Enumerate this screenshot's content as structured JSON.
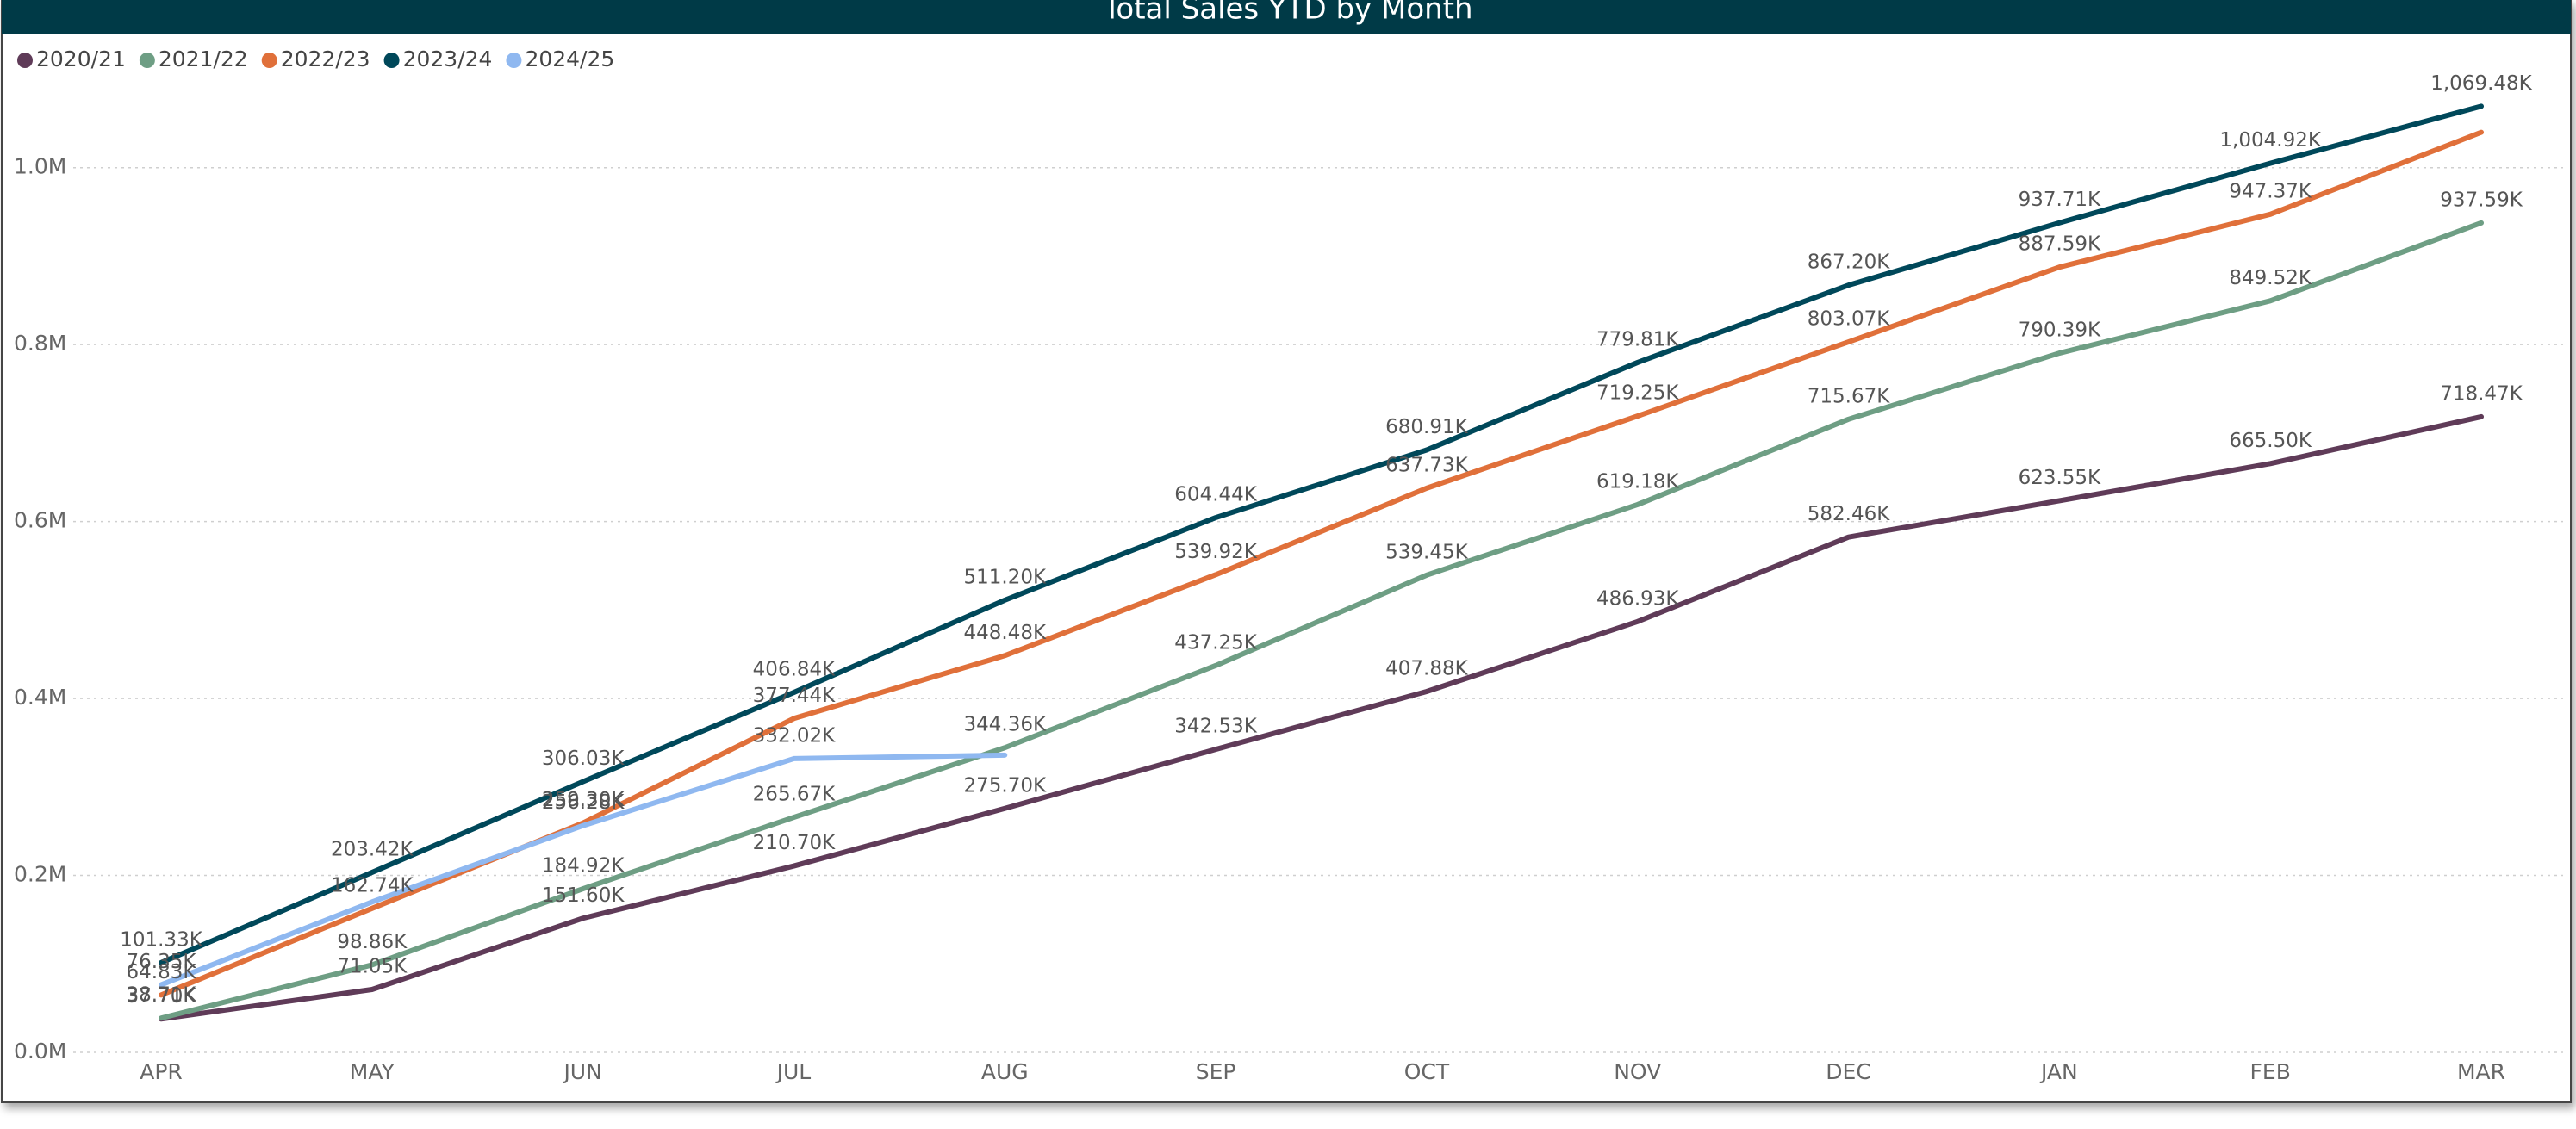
{
  "chart_data": {
    "type": "line",
    "title": "Total Sales YTD by Month",
    "categories": [
      "APR",
      "MAY",
      "JUN",
      "JUL",
      "AUG",
      "SEP",
      "OCT",
      "NOV",
      "DEC",
      "JAN",
      "FEB",
      "MAR"
    ],
    "series": [
      {
        "name": "2020/21",
        "color": "#5f3b58",
        "values": [
          37700,
          71050,
          151600,
          210700,
          275700,
          342530,
          407880,
          486930,
          582460,
          623550,
          665500,
          718470
        ],
        "value_labels": [
          "37.70K",
          "71.05K",
          "151.60K",
          "210.70K",
          "275.70K",
          "342.53K",
          "407.88K",
          "486.93K",
          "582.46K",
          "623.55K",
          "665.50K",
          "718.47K"
        ]
      },
      {
        "name": "2021/22",
        "color": "#6e9e84",
        "values": [
          38710,
          98860,
          184920,
          265670,
          344360,
          437250,
          539450,
          619180,
          715670,
          790390,
          849520,
          937590
        ],
        "value_labels": [
          "38.71K",
          "98.86K",
          "184.92K",
          "265.67K",
          "344.36K",
          "437.25K",
          "539.45K",
          "619.18K",
          "715.67K",
          "790.39K",
          "849.52K",
          "937.59K"
        ]
      },
      {
        "name": "2022/23",
        "color": "#e0703a",
        "values": [
          64830,
          162740,
          259300,
          377440,
          448480,
          539920,
          637730,
          719250,
          803070,
          887590,
          947370,
          1040000
        ],
        "value_labels": [
          "64.83K",
          "162.74K",
          "259.30K",
          "377.44K",
          "448.48K",
          "539.92K",
          "637.73K",
          "719.25K",
          "803.07K",
          "887.59K",
          "947.37K",
          null
        ]
      },
      {
        "name": "2023/24",
        "color": "#00485a",
        "values": [
          101330,
          203420,
          306030,
          406840,
          511200,
          604440,
          680910,
          779810,
          867200,
          937710,
          1004920,
          1069480
        ],
        "value_labels": [
          "101.33K",
          "203.42K",
          "306.03K",
          "406.84K",
          "511.20K",
          "604.44K",
          "680.91K",
          "779.81K",
          "867.20K",
          "937.71K",
          "1,004.92K",
          "1,069.48K"
        ]
      },
      {
        "name": "2024/25",
        "color": "#8fb8f0",
        "values": [
          76350,
          170000,
          256280,
          332020,
          336000,
          null,
          null,
          null,
          null,
          null,
          null,
          null
        ],
        "value_labels": [
          "76.35K",
          null,
          "256.28K",
          "332.02K",
          null,
          null,
          null,
          null,
          null,
          null,
          null,
          null
        ]
      }
    ],
    "ylim": [
      0,
      1100000
    ],
    "yticks": [
      {
        "value": 0,
        "label": "0.0M"
      },
      {
        "value": 200000,
        "label": "0.2M"
      },
      {
        "value": 400000,
        "label": "0.4M"
      },
      {
        "value": 600000,
        "label": "0.6M"
      },
      {
        "value": 800000,
        "label": "0.8M"
      },
      {
        "value": 1000000,
        "label": "1.0M"
      }
    ],
    "grid": true,
    "legend": "top-left"
  }
}
